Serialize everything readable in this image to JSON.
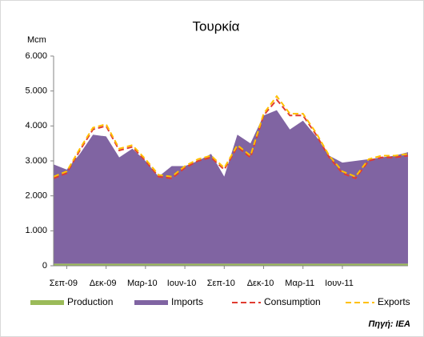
{
  "chart_data": {
    "type": "area",
    "title": "Τουρκία",
    "y_label": "Mcm",
    "source": "Πηγή: IEA",
    "categories": [
      null,
      "Σεπ-09",
      null,
      null,
      "Δεκ-09",
      null,
      null,
      "Μαρ-10",
      null,
      null,
      "Ιουν-10",
      null,
      null,
      "Σεπ-10",
      null,
      null,
      "Δεκ-10",
      null,
      null,
      "Μαρ-11",
      null,
      null,
      "Ιουν-11",
      null,
      null,
      null,
      null,
      null
    ],
    "series": [
      {
        "name": "Production",
        "color": "#9bbb59",
        "stacked": true,
        "values": [
          60,
          60,
          60,
          60,
          60,
          60,
          60,
          60,
          60,
          60,
          60,
          60,
          60,
          60,
          60,
          60,
          60,
          60,
          60,
          60,
          60,
          60,
          60,
          60,
          60,
          60,
          60,
          60
        ]
      },
      {
        "name": "Imports",
        "color": "#8064a2",
        "stacked": true,
        "values": [
          2840,
          2690,
          3140,
          3690,
          3640,
          3040,
          3290,
          2940,
          2490,
          2790,
          2790,
          2940,
          3140,
          2490,
          3690,
          3440,
          4240,
          4390,
          3840,
          4090,
          3640,
          3090,
          2890,
          2940,
          2990,
          3040,
          3090,
          3190
        ]
      },
      {
        "name": "Consumption",
        "color": "#e03c31",
        "dashed": true,
        "values": [
          2500,
          2650,
          3300,
          3900,
          4000,
          3300,
          3400,
          3000,
          2550,
          2500,
          2800,
          3000,
          3100,
          2750,
          3400,
          3100,
          4300,
          4750,
          4300,
          4300,
          3750,
          3100,
          2650,
          2500,
          3000,
          3100,
          3100,
          3150
        ]
      },
      {
        "name": "Exports",
        "color": "#ffc000",
        "dashed": true,
        "values": [
          2550,
          2700,
          3350,
          3950,
          4050,
          3350,
          3450,
          3050,
          2600,
          2550,
          2850,
          3050,
          3150,
          2800,
          3450,
          3150,
          4350,
          4850,
          4350,
          4350,
          3800,
          3150,
          2700,
          2550,
          3050,
          3150,
          3150,
          3200
        ]
      }
    ],
    "ylim": [
      0,
      6000
    ],
    "yticks": [
      0,
      {
        "value": 1000,
        "label": "1.000"
      },
      {
        "value": 2000,
        "label": "2.000"
      },
      {
        "value": 3000,
        "label": "3.000"
      },
      {
        "value": 4000,
        "label": "4.000"
      },
      {
        "value": 5000,
        "label": "5.000"
      },
      {
        "value": 6000,
        "label": "6.000"
      }
    ],
    "grid": false,
    "legend": "bottom"
  }
}
